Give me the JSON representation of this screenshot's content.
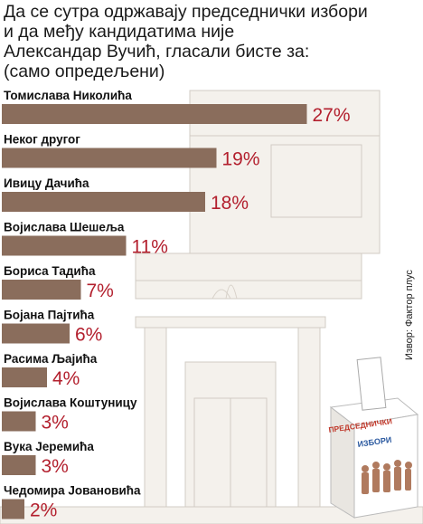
{
  "title_lines": [
    "Да се сутра одржавају председнички избори",
    "и да међу кандидатима није",
    "Александар Вучић, гласали бисте за:",
    "(само опредељени)"
  ],
  "source": "Извор: Фактор плус",
  "ballot_box": {
    "line1": "ПРЕДСЕДНИЧКИ",
    "line2": "ИЗБОРИ"
  },
  "chart_data": {
    "type": "bar",
    "orientation": "horizontal",
    "categories": [
      "Томислава Николића",
      "Неког другог",
      "Ивицу Дачића",
      "Војислава Шешеља",
      "Бориса Тадића",
      "Бојана Пајтића",
      "Расима Љајића",
      "Војислава Коштуницу",
      "Вука Јеремића",
      "Чедомира Јовановића"
    ],
    "values": [
      27,
      19,
      18,
      11,
      7,
      6,
      4,
      3,
      3,
      2
    ],
    "value_labels": [
      "27%",
      "19%",
      "18%",
      "11%",
      "7%",
      "6%",
      "4%",
      "3%",
      "3%",
      "2%"
    ],
    "unit": "%",
    "bar_color": "#8a6d5c",
    "label_color": "#b3202e"
  }
}
